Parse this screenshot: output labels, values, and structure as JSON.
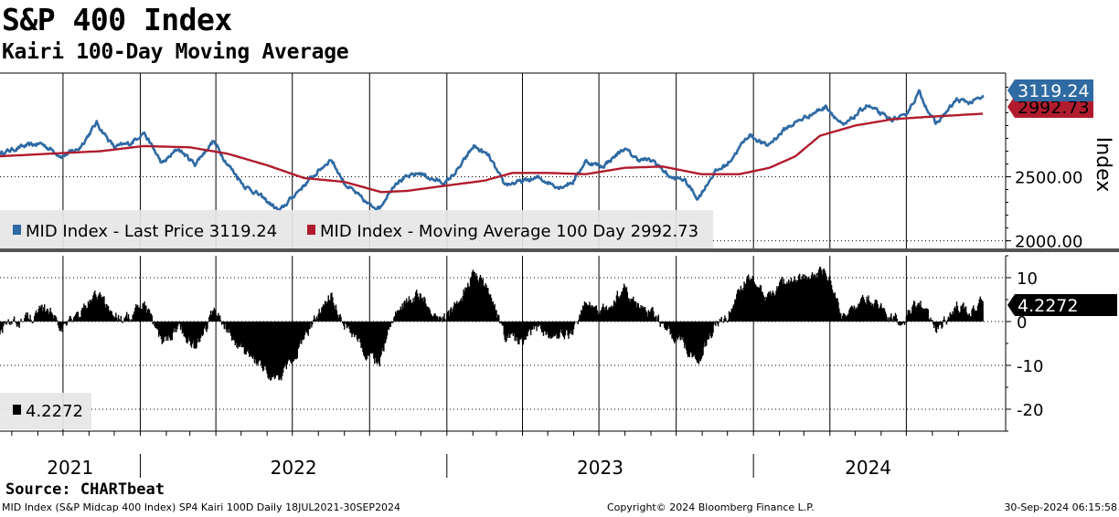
{
  "title": "S&P 400 Index",
  "subtitle": "Kairi 100-Day Moving Average",
  "source": "Source: CHARTbeat",
  "footer": {
    "left": "MID Index (S&P Midcap 400 Index) SP4 Kairi 100D  Daily 18JUL2021-30SEP2024",
    "center": "Copyright© 2024 Bloomberg Finance L.P.",
    "right": "30-Sep-2024 06:15:58"
  },
  "colors": {
    "price": "#2f6aa3",
    "ma": "#b01c2e",
    "kairi": "#000000",
    "divider": "#555555"
  },
  "chart_data": [
    {
      "type": "line",
      "panel": "top",
      "ylabel": "Index",
      "yticks": [
        2000,
        2500
      ],
      "ytick_labels": [
        "2000.00",
        "2500.00"
      ],
      "ylim": [
        1940,
        3310
      ],
      "x_range": [
        "2021-07-18",
        "2024-09-30"
      ],
      "x_year_labels": [
        "2021",
        "2022",
        "2023",
        "2024"
      ],
      "series": [
        {
          "name": "MID Index - Last Price",
          "legend": "MID Index - Last Price 3119.24",
          "last_value": 3119.24,
          "last_label": "3119.24",
          "points": [
            [
              "2021-07-18",
              2680
            ],
            [
              "2021-08-10",
              2730
            ],
            [
              "2021-09-05",
              2760
            ],
            [
              "2021-09-30",
              2660
            ],
            [
              "2021-10-20",
              2720
            ],
            [
              "2021-11-10",
              2920
            ],
            [
              "2021-12-01",
              2730
            ],
            [
              "2021-12-20",
              2760
            ],
            [
              "2022-01-05",
              2850
            ],
            [
              "2022-01-27",
              2600
            ],
            [
              "2022-02-15",
              2720
            ],
            [
              "2022-03-07",
              2600
            ],
            [
              "2022-03-29",
              2780
            ],
            [
              "2022-04-15",
              2600
            ],
            [
              "2022-05-05",
              2430
            ],
            [
              "2022-05-20",
              2370
            ],
            [
              "2022-06-16",
              2230
            ],
            [
              "2022-07-05",
              2370
            ],
            [
              "2022-08-16",
              2640
            ],
            [
              "2022-09-01",
              2450
            ],
            [
              "2022-09-30",
              2280
            ],
            [
              "2022-10-13",
              2260
            ],
            [
              "2022-11-01",
              2460
            ],
            [
              "2022-11-30",
              2530
            ],
            [
              "2022-12-15",
              2480
            ],
            [
              "2022-12-30",
              2450
            ],
            [
              "2023-01-15",
              2560
            ],
            [
              "2023-02-02",
              2740
            ],
            [
              "2023-02-20",
              2660
            ],
            [
              "2023-03-10",
              2440
            ],
            [
              "2023-03-30",
              2460
            ],
            [
              "2023-04-20",
              2490
            ],
            [
              "2023-05-15",
              2420
            ],
            [
              "2023-05-31",
              2460
            ],
            [
              "2023-06-15",
              2620
            ],
            [
              "2023-07-05",
              2580
            ],
            [
              "2023-07-31",
              2720
            ],
            [
              "2023-08-15",
              2640
            ],
            [
              "2023-09-05",
              2620
            ],
            [
              "2023-09-25",
              2490
            ],
            [
              "2023-10-10",
              2480
            ],
            [
              "2023-10-27",
              2330
            ],
            [
              "2023-11-15",
              2530
            ],
            [
              "2023-12-01",
              2600
            ],
            [
              "2023-12-27",
              2830
            ],
            [
              "2024-01-17",
              2740
            ],
            [
              "2024-02-09",
              2880
            ],
            [
              "2024-03-01",
              2960
            ],
            [
              "2024-03-28",
              3050
            ],
            [
              "2024-04-17",
              2890
            ],
            [
              "2024-05-15",
              3060
            ],
            [
              "2024-06-10",
              2950
            ],
            [
              "2024-06-28",
              2960
            ],
            [
              "2024-07-16",
              3160
            ],
            [
              "2024-08-05",
              2910
            ],
            [
              "2024-08-30",
              3100
            ],
            [
              "2024-09-15",
              3080
            ],
            [
              "2024-09-30",
              3119.24
            ]
          ]
        },
        {
          "name": "MID Index - Moving Average 100 Day",
          "legend": "MID Index - Moving Average 100 Day 2992.73",
          "last_value": 2992.73,
          "last_label": "2992.73",
          "points": [
            [
              "2021-07-18",
              2660
            ],
            [
              "2021-09-15",
              2680
            ],
            [
              "2021-11-15",
              2700
            ],
            [
              "2022-01-05",
              2740
            ],
            [
              "2022-03-01",
              2730
            ],
            [
              "2022-04-15",
              2680
            ],
            [
              "2022-06-01",
              2590
            ],
            [
              "2022-07-15",
              2490
            ],
            [
              "2022-09-01",
              2460
            ],
            [
              "2022-10-15",
              2380
            ],
            [
              "2022-11-15",
              2390
            ],
            [
              "2022-12-30",
              2430
            ],
            [
              "2023-02-15",
              2470
            ],
            [
              "2023-03-20",
              2530
            ],
            [
              "2023-05-01",
              2530
            ],
            [
              "2023-06-15",
              2520
            ],
            [
              "2023-08-01",
              2570
            ],
            [
              "2023-09-15",
              2580
            ],
            [
              "2023-10-31",
              2520
            ],
            [
              "2023-12-15",
              2520
            ],
            [
              "2024-01-20",
              2570
            ],
            [
              "2024-02-20",
              2660
            ],
            [
              "2024-03-20",
              2820
            ],
            [
              "2024-05-01",
              2900
            ],
            [
              "2024-06-15",
              2950
            ],
            [
              "2024-08-01",
              2970
            ],
            [
              "2024-09-30",
              2992.73
            ]
          ]
        }
      ]
    },
    {
      "type": "bar",
      "panel": "bottom",
      "yticks": [
        10,
        0,
        -10,
        -20
      ],
      "ytick_labels": [
        "10",
        "0",
        "-10",
        "-20"
      ],
      "ylim": [
        -25,
        15
      ],
      "series": [
        {
          "name": "Kairi 100D",
          "legend": "4.2272",
          "last_value": 4.2272,
          "last_label": "4.2272",
          "points": [
            [
              "2021-07-18",
              -2
            ],
            [
              "2021-08-20",
              1
            ],
            [
              "2021-09-15",
              2.5
            ],
            [
              "2021-10-01",
              -1
            ],
            [
              "2021-10-20",
              1.5
            ],
            [
              "2021-11-10",
              6.5
            ],
            [
              "2021-12-01",
              1.5
            ],
            [
              "2021-12-20",
              1
            ],
            [
              "2022-01-05",
              4
            ],
            [
              "2022-01-27",
              -5
            ],
            [
              "2022-02-15",
              -1
            ],
            [
              "2022-03-07",
              -6
            ],
            [
              "2022-03-29",
              2
            ],
            [
              "2022-04-15",
              -1.5
            ],
            [
              "2022-05-05",
              -7
            ],
            [
              "2022-05-20",
              -10
            ],
            [
              "2022-06-16",
              -14
            ],
            [
              "2022-07-05",
              -7
            ],
            [
              "2022-08-16",
              6
            ],
            [
              "2022-09-01",
              0
            ],
            [
              "2022-09-30",
              -8
            ],
            [
              "2022-10-13",
              -9
            ],
            [
              "2022-11-01",
              3
            ],
            [
              "2022-11-30",
              6
            ],
            [
              "2022-12-15",
              3
            ],
            [
              "2022-12-30",
              1
            ],
            [
              "2023-01-15",
              4
            ],
            [
              "2023-02-02",
              11.5
            ],
            [
              "2023-02-20",
              7
            ],
            [
              "2023-03-10",
              -3
            ],
            [
              "2023-03-30",
              -5
            ],
            [
              "2023-04-20",
              -1.5
            ],
            [
              "2023-05-15",
              -3.5
            ],
            [
              "2023-05-31",
              -2
            ],
            [
              "2023-06-15",
              4
            ],
            [
              "2023-07-05",
              2
            ],
            [
              "2023-07-31",
              7.5
            ],
            [
              "2023-08-15",
              4
            ],
            [
              "2023-09-05",
              1.5
            ],
            [
              "2023-09-25",
              -3
            ],
            [
              "2023-10-10",
              -5
            ],
            [
              "2023-10-27",
              -9.5
            ],
            [
              "2023-11-15",
              -1
            ],
            [
              "2023-12-01",
              1.5
            ],
            [
              "2023-12-27",
              10
            ],
            [
              "2024-01-17",
              6
            ],
            [
              "2024-02-09",
              9
            ],
            [
              "2024-03-01",
              10
            ],
            [
              "2024-03-28",
              11.5
            ],
            [
              "2024-04-17",
              1
            ],
            [
              "2024-05-15",
              5.5
            ],
            [
              "2024-06-10",
              1
            ],
            [
              "2024-06-28",
              0
            ],
            [
              "2024-07-16",
              5
            ],
            [
              "2024-08-05",
              -2.5
            ],
            [
              "2024-08-30",
              4
            ],
            [
              "2024-09-15",
              2
            ],
            [
              "2024-09-30",
              4.2272
            ]
          ]
        }
      ]
    }
  ]
}
